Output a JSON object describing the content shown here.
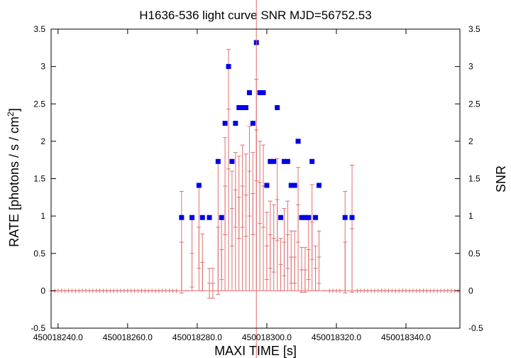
{
  "chart_data": {
    "type": "scatter",
    "title": "H1636-536 light curve  SNR MJD=56752.53",
    "xlabel": "MAXI TIME [s]",
    "ylabel_main": "RATE [photons / s / cm",
    "ylabel_sup": "2",
    "ylabel_end": "]",
    "y2label": "SNR",
    "xlim": [
      450018238.0,
      450018355.5
    ],
    "ylim": [
      -0.5,
      3.5
    ],
    "y2lim": [
      -0.5,
      3.5
    ],
    "x_ticks": [
      {
        "value": 450018240,
        "label": "450018240.0"
      },
      {
        "value": 450018260,
        "label": "450018260.0"
      },
      {
        "value": 450018280,
        "label": "450018280.0"
      },
      {
        "value": 450018300,
        "label": "450018300.0"
      },
      {
        "value": 450018320,
        "label": "450018320.0"
      },
      {
        "value": 450018340,
        "label": "450018340.0"
      }
    ],
    "y_ticks": [
      {
        "value": -0.5,
        "label": "-0.5"
      },
      {
        "value": 0,
        "label": "0"
      },
      {
        "value": 0.5,
        "label": "0.5"
      },
      {
        "value": 1,
        "label": "1"
      },
      {
        "value": 1.5,
        "label": "1.5"
      },
      {
        "value": 2,
        "label": "2"
      },
      {
        "value": 2.5,
        "label": "2.5"
      },
      {
        "value": 3,
        "label": "3"
      },
      {
        "value": 3.5,
        "label": "3.5"
      }
    ],
    "vertical_marker_x": 450018297.0,
    "colors": {
      "rate": "#e07070",
      "snr": "#0000e6",
      "marker": "#e07070",
      "axis": "#000000"
    },
    "grid": false,
    "series": [
      {
        "kind": "rate",
        "points": [
          {
            "x": 450018275.5,
            "y": 0.65,
            "err": 0.68
          },
          {
            "x": 450018277.0,
            "y": 0.0,
            "err": 0.0
          },
          {
            "x": 450018278.5,
            "y": 0.5,
            "err": 0.45
          },
          {
            "x": 450018280.5,
            "y": 0.85,
            "err": 0.55
          },
          {
            "x": 450018281.5,
            "y": 0.38,
            "err": 0.38
          },
          {
            "x": 450018283.5,
            "y": 0.1,
            "err": 0.2
          },
          {
            "x": 450018284.5,
            "y": 0.1,
            "err": 0.2
          },
          {
            "x": 450018286.0,
            "y": 0.85,
            "err": 0.9
          },
          {
            "x": 450018287.0,
            "y": 0.55,
            "err": 0.4
          },
          {
            "x": 450018288.0,
            "y": 1.4,
            "err": 0.65
          },
          {
            "x": 450018289.0,
            "y": 2.43,
            "err": 0.8
          },
          {
            "x": 450018290.0,
            "y": 1.1,
            "err": 0.5
          },
          {
            "x": 450018291.0,
            "y": 1.35,
            "err": 0.5
          },
          {
            "x": 450018292.0,
            "y": 1.25,
            "err": 0.55
          },
          {
            "x": 450018293.0,
            "y": 1.4,
            "err": 0.55
          },
          {
            "x": 450018294.0,
            "y": 1.28,
            "err": 0.55
          },
          {
            "x": 450018295.0,
            "y": 1.6,
            "err": 0.6
          },
          {
            "x": 450018296.0,
            "y": 1.3,
            "err": 0.55
          },
          {
            "x": 450018297.0,
            "y": 2.15,
            "err": 0.68
          },
          {
            "x": 450018298.0,
            "y": 1.45,
            "err": 0.55
          },
          {
            "x": 450018299.0,
            "y": 1.4,
            "err": 0.55
          },
          {
            "x": 450018300.0,
            "y": 0.6,
            "err": 0.45
          },
          {
            "x": 450018301.0,
            "y": 0.75,
            "err": 0.45
          },
          {
            "x": 450018302.0,
            "y": 0.7,
            "err": 0.45
          },
          {
            "x": 450018303.0,
            "y": 1.22,
            "err": 0.55
          },
          {
            "x": 450018304.0,
            "y": 0.35,
            "err": 0.35
          },
          {
            "x": 450018305.0,
            "y": 0.65,
            "err": 0.45
          },
          {
            "x": 450018306.0,
            "y": 0.75,
            "err": 0.45
          },
          {
            "x": 450018307.0,
            "y": 0.45,
            "err": 0.35
          },
          {
            "x": 450018308.0,
            "y": 0.45,
            "err": 0.35
          },
          {
            "x": 450018309.0,
            "y": 1.15,
            "err": 0.5
          },
          {
            "x": 450018310.0,
            "y": 0.28,
            "err": 0.3
          },
          {
            "x": 450018311.0,
            "y": 0.28,
            "err": 0.3
          },
          {
            "x": 450018312.0,
            "y": 0.55,
            "err": 0.4
          },
          {
            "x": 450018313.0,
            "y": 0.92,
            "err": 0.5
          },
          {
            "x": 450018314.0,
            "y": 0.3,
            "err": 0.3
          },
          {
            "x": 450018315.0,
            "y": 0.45,
            "err": 0.35
          },
          {
            "x": 450018316.5,
            "y": 0.0,
            "err": 0.0
          },
          {
            "x": 450018322.5,
            "y": 0.65,
            "err": 0.68
          },
          {
            "x": 450018324.5,
            "y": 0.83,
            "err": 0.85
          }
        ]
      },
      {
        "kind": "snr",
        "points": [
          {
            "x": 450018275.5,
            "y": 0.98
          },
          {
            "x": 450018278.5,
            "y": 0.98
          },
          {
            "x": 450018280.5,
            "y": 1.41
          },
          {
            "x": 450018281.5,
            "y": 0.98
          },
          {
            "x": 450018283.5,
            "y": 0.98
          },
          {
            "x": 450018286.0,
            "y": 1.73
          },
          {
            "x": 450018287.0,
            "y": 0.98
          },
          {
            "x": 450018288.0,
            "y": 2.24
          },
          {
            "x": 450018289.0,
            "y": 3.0
          },
          {
            "x": 450018290.0,
            "y": 1.73
          },
          {
            "x": 450018291.0,
            "y": 2.24
          },
          {
            "x": 450018292.0,
            "y": 2.45
          },
          {
            "x": 450018293.0,
            "y": 2.45
          },
          {
            "x": 450018294.0,
            "y": 2.45
          },
          {
            "x": 450018295.0,
            "y": 2.65
          },
          {
            "x": 450018296.0,
            "y": 2.24
          },
          {
            "x": 450018297.0,
            "y": 3.32
          },
          {
            "x": 450018298.0,
            "y": 2.65
          },
          {
            "x": 450018299.0,
            "y": 2.65
          },
          {
            "x": 450018300.0,
            "y": 1.41
          },
          {
            "x": 450018301.0,
            "y": 1.73
          },
          {
            "x": 450018302.0,
            "y": 1.73
          },
          {
            "x": 450018303.0,
            "y": 2.45
          },
          {
            "x": 450018304.0,
            "y": 0.98
          },
          {
            "x": 450018305.0,
            "y": 1.73
          },
          {
            "x": 450018306.0,
            "y": 1.73
          },
          {
            "x": 450018307.0,
            "y": 1.41
          },
          {
            "x": 450018308.0,
            "y": 1.41
          },
          {
            "x": 450018309.0,
            "y": 2.0
          },
          {
            "x": 450018310.0,
            "y": 0.98
          },
          {
            "x": 450018311.0,
            "y": 0.98
          },
          {
            "x": 450018312.0,
            "y": 0.98
          },
          {
            "x": 450018313.0,
            "y": 1.73
          },
          {
            "x": 450018314.0,
            "y": 0.98
          },
          {
            "x": 450018315.0,
            "y": 1.41
          },
          {
            "x": 450018322.5,
            "y": 0.98
          },
          {
            "x": 450018324.5,
            "y": 0.98
          }
        ]
      }
    ]
  }
}
